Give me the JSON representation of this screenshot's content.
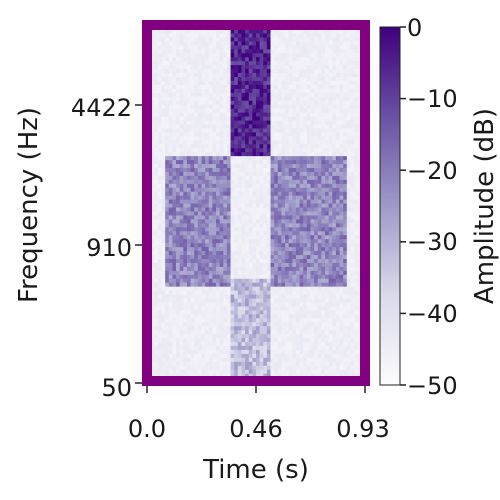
{
  "chart_data": {
    "type": "heatmap",
    "subtype": "spectrogram",
    "title": "",
    "xlabel": "Time (s)",
    "ylabel": "Frequency (Hz)",
    "colorbar_label": "Amplitude (dB)",
    "x_ticks": [
      "0.0",
      "0.46",
      "0.93"
    ],
    "y_ticks": [
      "50",
      "910",
      "4422"
    ],
    "colorbar_ticks": [
      "0",
      "−10",
      "−20",
      "−30",
      "−40",
      "−50"
    ],
    "xlim": [
      0.0,
      0.93
    ],
    "ylim_hz": [
      50,
      22050
    ],
    "y_scale": "log",
    "clim_db": [
      -50,
      0
    ],
    "colormap": "Purples",
    "frame_color": "#800080",
    "segments": [
      {
        "t_start": 0.08,
        "t_end": 0.36,
        "f_low_hz": 250,
        "f_high_hz": 2300,
        "level_db": -22
      },
      {
        "t_start": 0.36,
        "t_end": 0.52,
        "f_low_hz": 2300,
        "f_high_hz": 20000,
        "level_db": -6
      },
      {
        "t_start": 0.36,
        "t_end": 0.52,
        "f_low_hz": 50,
        "f_high_hz": 300,
        "level_db": -32
      },
      {
        "t_start": 0.52,
        "t_end": 0.86,
        "f_low_hz": 250,
        "f_high_hz": 2300,
        "level_db": -22
      }
    ],
    "noise_floor_db": -47
  }
}
